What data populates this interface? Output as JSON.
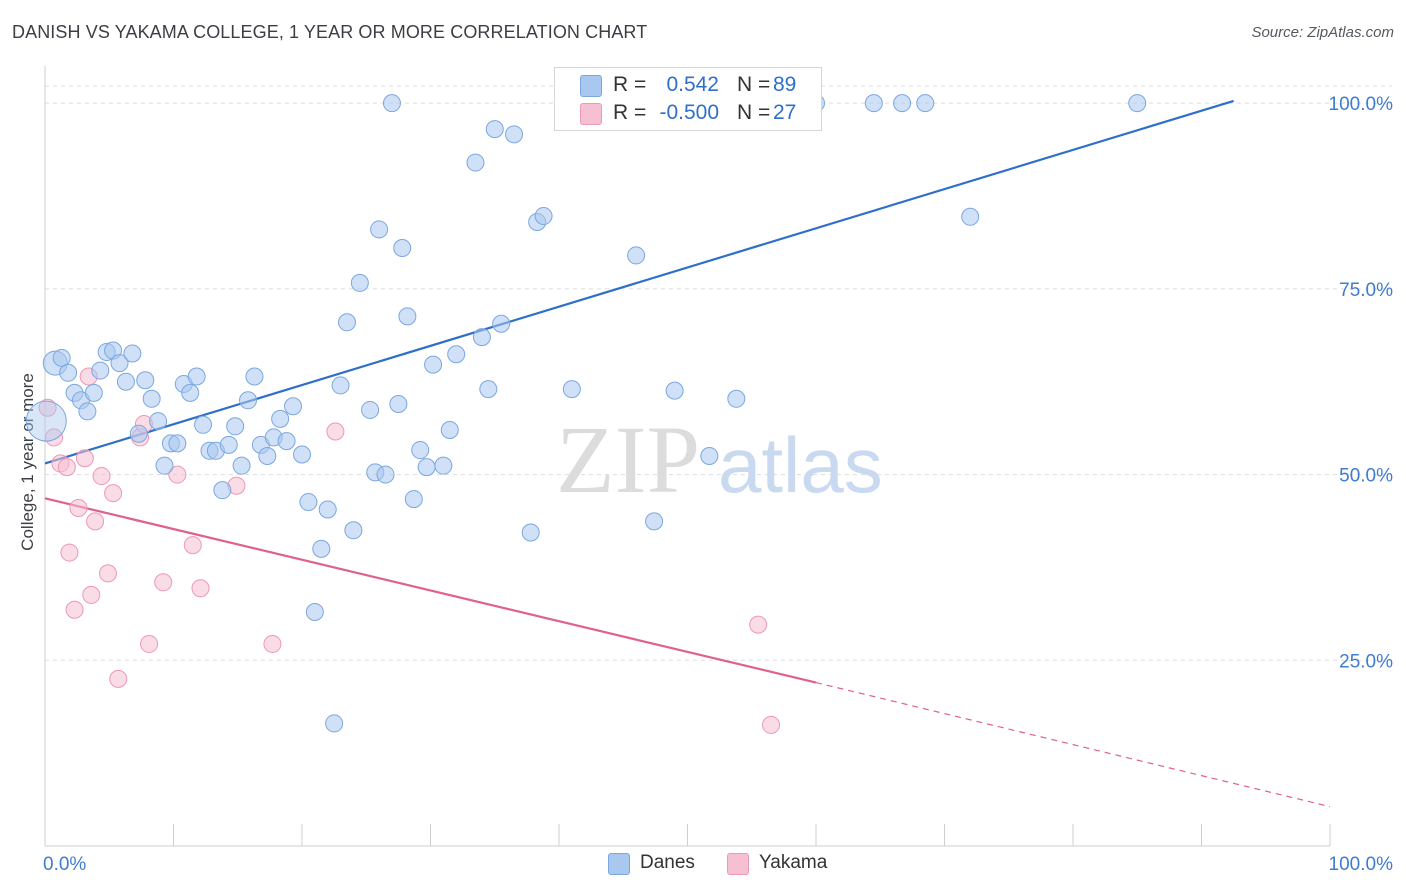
{
  "title": "DANISH VS YAKAMA COLLEGE, 1 YEAR OR MORE CORRELATION CHART",
  "source": "Source: ZipAtlas.com",
  "watermark": {
    "zip": "ZIP",
    "atlas": "atlas"
  },
  "colors": {
    "danes_fill": "#a9c8f0",
    "danes_stroke": "#7aa7e0",
    "danes_line": "#2f6fca",
    "yakama_fill": "#f6bfd2",
    "yakama_stroke": "#ef97b6",
    "yakama_line": "#e0608e",
    "grid": "#dddddd",
    "axis_text": "#3f7cd0"
  },
  "stats": {
    "danes": {
      "r_label": "R =",
      "r_value": "0.542",
      "n_label": "N =",
      "n_value": "89"
    },
    "yakama": {
      "r_label": "R =",
      "r_value": "-0.500",
      "n_label": "N =",
      "n_value": "27"
    }
  },
  "legend": {
    "danes": "Danes",
    "yakama": "Yakama"
  },
  "chart_data": {
    "type": "scatter",
    "title": "DANISH VS YAKAMA COLLEGE, 1 YEAR OR MORE CORRELATION CHART",
    "xlabel": "",
    "ylabel": "College, 1 year or more",
    "xlim": [
      0,
      100
    ],
    "ylim": [
      0,
      105
    ],
    "x_tick_labels": [
      "0.0%",
      "100.0%"
    ],
    "y_ticks": [
      25,
      50,
      75,
      100
    ],
    "y_tick_labels": [
      "25.0%",
      "50.0%",
      "75.0%",
      "100.0%"
    ],
    "grid": true,
    "legend_position": "bottom-center",
    "series": [
      {
        "name": "Danes",
        "r": 0.542,
        "n": 89,
        "trend": {
          "x0": 0.0,
          "y0": 51.5,
          "x1": 92.5,
          "y1": 100.3
        },
        "points": [
          [
            0.8,
            65.0,
            2
          ],
          [
            1.3,
            65.7,
            1
          ],
          [
            1.8,
            63.7,
            1
          ],
          [
            2.3,
            61.0,
            1
          ],
          [
            2.8,
            60.0,
            1
          ],
          [
            3.3,
            58.5,
            1
          ],
          [
            3.8,
            61.0,
            1
          ],
          [
            4.3,
            64.0,
            1
          ],
          [
            4.8,
            66.5,
            1
          ],
          [
            5.3,
            66.7,
            1
          ],
          [
            5.8,
            65.0,
            1
          ],
          [
            6.3,
            62.5,
            1
          ],
          [
            6.8,
            66.3,
            1
          ],
          [
            7.3,
            55.5,
            1
          ],
          [
            7.8,
            62.7,
            1
          ],
          [
            8.3,
            60.2,
            1
          ],
          [
            8.8,
            57.2,
            1
          ],
          [
            9.3,
            51.2,
            1
          ],
          [
            9.8,
            54.2,
            1
          ],
          [
            10.3,
            54.2,
            1
          ],
          [
            10.8,
            62.2,
            1
          ],
          [
            11.3,
            61.0,
            1
          ],
          [
            11.8,
            63.2,
            1
          ],
          [
            12.3,
            56.7,
            1
          ],
          [
            12.8,
            53.2,
            1
          ],
          [
            13.3,
            53.2,
            1
          ],
          [
            13.8,
            47.9,
            1
          ],
          [
            14.3,
            54.0,
            1
          ],
          [
            14.8,
            56.5,
            1
          ],
          [
            15.3,
            51.2,
            1
          ],
          [
            15.8,
            60.0,
            1
          ],
          [
            16.3,
            63.2,
            1
          ],
          [
            16.8,
            54.0,
            1
          ],
          [
            17.3,
            52.5,
            1
          ],
          [
            17.8,
            55.0,
            1
          ],
          [
            18.3,
            57.5,
            1
          ],
          [
            18.8,
            54.5,
            1
          ],
          [
            19.3,
            59.2,
            1
          ],
          [
            20.0,
            52.7,
            1
          ],
          [
            20.5,
            46.3,
            1
          ],
          [
            21.0,
            31.5,
            1
          ],
          [
            21.5,
            40.0,
            1
          ],
          [
            22.0,
            45.3,
            1
          ],
          [
            22.5,
            16.5,
            1
          ],
          [
            23.0,
            62.0,
            1
          ],
          [
            23.5,
            70.5,
            1
          ],
          [
            24.0,
            42.5,
            1
          ],
          [
            24.5,
            75.8,
            1
          ],
          [
            25.3,
            58.7,
            1
          ],
          [
            25.7,
            50.3,
            1
          ],
          [
            26.0,
            83.0,
            1
          ],
          [
            26.5,
            50.0,
            1
          ],
          [
            27.0,
            100.0,
            1
          ],
          [
            27.5,
            59.5,
            1
          ],
          [
            27.8,
            80.5,
            1
          ],
          [
            28.2,
            71.3,
            1
          ],
          [
            28.7,
            46.7,
            1
          ],
          [
            29.2,
            53.3,
            1
          ],
          [
            29.7,
            51.0,
            1
          ],
          [
            30.2,
            64.8,
            1
          ],
          [
            31.0,
            51.2,
            1
          ],
          [
            31.5,
            56.0,
            1
          ],
          [
            32.0,
            66.2,
            1
          ],
          [
            33.5,
            92.0,
            1
          ],
          [
            34.0,
            68.5,
            1
          ],
          [
            34.5,
            61.5,
            1
          ],
          [
            35.0,
            96.5,
            1
          ],
          [
            35.5,
            70.3,
            1
          ],
          [
            36.5,
            95.8,
            1
          ],
          [
            38.3,
            84.0,
            1
          ],
          [
            38.8,
            84.8,
            1
          ],
          [
            37.8,
            42.2,
            1
          ],
          [
            41.0,
            61.5,
            1
          ],
          [
            43.8,
            100.0,
            1
          ],
          [
            44.7,
            100.0,
            1
          ],
          [
            46.0,
            79.5,
            1
          ],
          [
            47.4,
            43.7,
            1
          ],
          [
            49.0,
            61.3,
            1
          ],
          [
            51.7,
            52.5,
            1
          ],
          [
            53.8,
            60.2,
            1
          ],
          [
            60.0,
            100.0,
            1
          ],
          [
            64.5,
            100.0,
            1
          ],
          [
            66.7,
            100.0,
            1
          ],
          [
            68.5,
            100.0,
            1
          ],
          [
            72.0,
            84.7,
            1
          ],
          [
            85.0,
            100.0,
            1
          ]
        ]
      },
      {
        "name": "Yakama",
        "r": -0.5,
        "n": 27,
        "trend": {
          "x0": 0.0,
          "y0": 46.8,
          "x1": 60.0,
          "y1": 22.0,
          "dash_x1": 100.0,
          "dash_y1": 5.3
        },
        "points": [
          [
            0.2,
            59.0,
            1
          ],
          [
            0.7,
            55.0,
            1
          ],
          [
            1.2,
            51.5,
            1
          ],
          [
            1.7,
            51.0,
            1
          ],
          [
            1.9,
            39.5,
            1
          ],
          [
            2.3,
            31.8,
            1
          ],
          [
            2.6,
            45.5,
            1
          ],
          [
            3.1,
            52.2,
            1
          ],
          [
            3.4,
            63.2,
            1
          ],
          [
            3.6,
            33.8,
            1
          ],
          [
            3.9,
            43.7,
            1
          ],
          [
            4.4,
            49.8,
            1
          ],
          [
            4.9,
            36.7,
            1
          ],
          [
            5.3,
            47.5,
            1
          ],
          [
            5.7,
            22.5,
            1
          ],
          [
            7.4,
            55.0,
            1
          ],
          [
            7.7,
            56.8,
            1
          ],
          [
            8.1,
            27.2,
            1
          ],
          [
            9.2,
            35.5,
            1
          ],
          [
            10.3,
            50.0,
            1
          ],
          [
            11.5,
            40.5,
            1
          ],
          [
            12.1,
            34.7,
            1
          ],
          [
            14.9,
            48.5,
            1
          ],
          [
            17.7,
            27.2,
            1
          ],
          [
            22.6,
            55.8,
            1
          ],
          [
            55.5,
            29.8,
            1
          ],
          [
            56.5,
            16.3,
            1
          ]
        ]
      }
    ]
  }
}
